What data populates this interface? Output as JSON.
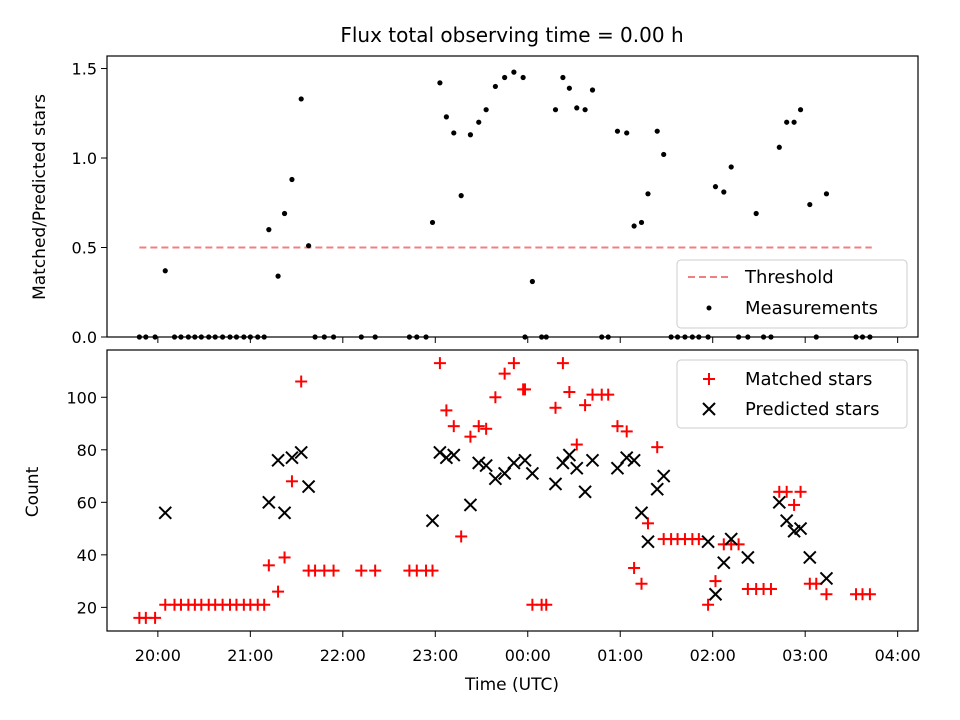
{
  "title": "Flux total observing time = 0.00 h",
  "xlabel": "Time (UTC)",
  "xticks": [
    "20:00",
    "21:00",
    "22:00",
    "23:00",
    "00:00",
    "01:00",
    "02:00",
    "03:00",
    "04:00"
  ],
  "colors": {
    "threshold": "#f08080",
    "measurement": "#000000",
    "matched": "#ff0000",
    "predicted": "#000000"
  },
  "chart_data": [
    {
      "type": "scatter",
      "ylabel": "Matched/Predicted stars",
      "ylim": [
        0,
        1.57
      ],
      "yticks": [
        "0.0",
        "0.5",
        "1.0",
        "1.5"
      ],
      "xlim_hours": [
        19.45,
        28.22
      ],
      "legend": {
        "placement": "lower-right",
        "entries": [
          "Threshold",
          "Measurements"
        ]
      },
      "threshold": {
        "name": "Threshold",
        "value": 0.5,
        "x_range": [
          19.8,
          27.72
        ]
      },
      "series": [
        {
          "name": "Measurements",
          "x": [
            19.8,
            19.87,
            19.97,
            20.08,
            20.18,
            20.25,
            20.33,
            20.4,
            20.47,
            20.55,
            20.62,
            20.7,
            20.78,
            20.85,
            20.93,
            21.0,
            21.08,
            21.15,
            21.2,
            21.3,
            21.37,
            21.45,
            21.55,
            21.63,
            21.7,
            21.8,
            21.9,
            22.2,
            22.35,
            22.72,
            22.8,
            22.9,
            22.97,
            23.05,
            23.12,
            23.2,
            23.28,
            23.38,
            23.47,
            23.55,
            23.65,
            23.75,
            23.85,
            23.95,
            23.97,
            24.05,
            24.15,
            24.2,
            24.3,
            24.38,
            24.45,
            24.53,
            24.62,
            24.7,
            24.8,
            24.87,
            24.97,
            25.07,
            25.15,
            25.23,
            25.3,
            25.4,
            25.47,
            25.55,
            25.62,
            25.7,
            25.78,
            25.85,
            25.95,
            26.03,
            26.12,
            26.2,
            26.28,
            26.38,
            26.47,
            26.55,
            26.63,
            26.72,
            26.8,
            26.88,
            26.95,
            27.05,
            27.12,
            27.23,
            27.55,
            27.62,
            27.7
          ],
          "y": [
            0,
            0,
            0,
            0.37,
            0,
            0,
            0,
            0,
            0,
            0,
            0,
            0,
            0,
            0,
            0,
            0,
            0,
            0,
            0.6,
            0.34,
            0.69,
            0.88,
            1.33,
            0.51,
            0,
            0,
            0,
            0,
            0,
            0,
            0,
            0,
            0.64,
            1.42,
            1.23,
            1.14,
            0.79,
            1.13,
            1.2,
            1.27,
            1.4,
            1.45,
            1.48,
            1.45,
            0,
            0.31,
            0,
            0,
            1.27,
            1.45,
            1.39,
            1.28,
            1.27,
            1.38,
            0,
            0,
            1.15,
            1.14,
            0.62,
            0.64,
            0.8,
            1.15,
            1.02,
            0,
            0,
            0,
            0,
            0,
            0,
            0.84,
            0.81,
            0.95,
            0,
            0,
            0.69,
            0,
            0,
            1.06,
            1.2,
            1.2,
            1.27,
            0.74,
            0,
            0.8,
            0,
            0,
            0
          ]
        }
      ]
    },
    {
      "type": "scatter",
      "ylabel": "Count",
      "ylim": [
        11,
        118
      ],
      "yticks": [
        "20",
        "40",
        "60",
        "80",
        "100"
      ],
      "xlim_hours": [
        19.45,
        28.22
      ],
      "legend": {
        "placement": "top-right",
        "entries": [
          "Matched stars",
          "Predicted stars"
        ]
      },
      "series": [
        {
          "name": "Matched stars",
          "x": [
            19.8,
            19.87,
            19.97,
            20.08,
            20.18,
            20.25,
            20.33,
            20.4,
            20.47,
            20.55,
            20.62,
            20.7,
            20.78,
            20.85,
            20.93,
            21.0,
            21.08,
            21.15,
            21.2,
            21.3,
            21.37,
            21.45,
            21.55,
            21.63,
            21.7,
            21.8,
            21.9,
            22.2,
            22.35,
            22.72,
            22.8,
            22.9,
            22.97,
            23.05,
            23.12,
            23.2,
            23.28,
            23.38,
            23.47,
            23.55,
            23.65,
            23.75,
            23.85,
            23.95,
            23.97,
            24.05,
            24.15,
            24.2,
            24.3,
            24.38,
            24.45,
            24.53,
            24.62,
            24.7,
            24.8,
            24.87,
            24.97,
            25.07,
            25.15,
            25.23,
            25.3,
            25.4,
            25.47,
            25.55,
            25.62,
            25.7,
            25.78,
            25.85,
            25.95,
            26.03,
            26.12,
            26.2,
            26.28,
            26.38,
            26.47,
            26.55,
            26.63,
            26.72,
            26.8,
            26.88,
            26.95,
            27.05,
            27.12,
            27.23,
            27.55,
            27.62,
            27.7
          ],
          "y": [
            16,
            16,
            16,
            21,
            21,
            21,
            21,
            21,
            21,
            21,
            21,
            21,
            21,
            21,
            21,
            21,
            21,
            21,
            36,
            26,
            39,
            68,
            106,
            34,
            34,
            34,
            34,
            34,
            34,
            34,
            34,
            34,
            34,
            113,
            95,
            89,
            47,
            85,
            89,
            88,
            100,
            109,
            113,
            103,
            103,
            21,
            21,
            21,
            96,
            113,
            102,
            82,
            97,
            101,
            101,
            101,
            89,
            87,
            35,
            29,
            52,
            81,
            46,
            46,
            46,
            46,
            46,
            46,
            21,
            30,
            44,
            44,
            44,
            27,
            27,
            27,
            27,
            64,
            64,
            59,
            64,
            29,
            29,
            25,
            25,
            25,
            25
          ]
        },
        {
          "name": "Predicted stars",
          "x": [
            20.08,
            21.2,
            21.3,
            21.37,
            21.45,
            21.55,
            21.63,
            22.97,
            23.05,
            23.12,
            23.2,
            23.38,
            23.47,
            23.55,
            23.65,
            23.75,
            23.85,
            23.97,
            24.05,
            24.3,
            24.38,
            24.45,
            24.53,
            24.62,
            24.7,
            24.97,
            25.07,
            25.15,
            25.23,
            25.3,
            25.4,
            25.47,
            25.95,
            26.03,
            26.12,
            26.2,
            26.38,
            26.72,
            26.8,
            26.88,
            26.95,
            27.05,
            27.23
          ],
          "y": [
            56,
            60,
            76,
            56,
            77,
            79,
            66,
            53,
            79,
            77,
            78,
            59,
            75,
            74,
            69,
            71,
            75,
            76,
            71,
            67,
            75,
            78,
            73,
            64,
            76,
            73,
            77,
            76,
            56,
            45,
            65,
            70,
            45,
            25,
            37,
            46,
            39,
            60,
            53,
            49,
            50,
            39,
            31
          ]
        }
      ]
    }
  ]
}
